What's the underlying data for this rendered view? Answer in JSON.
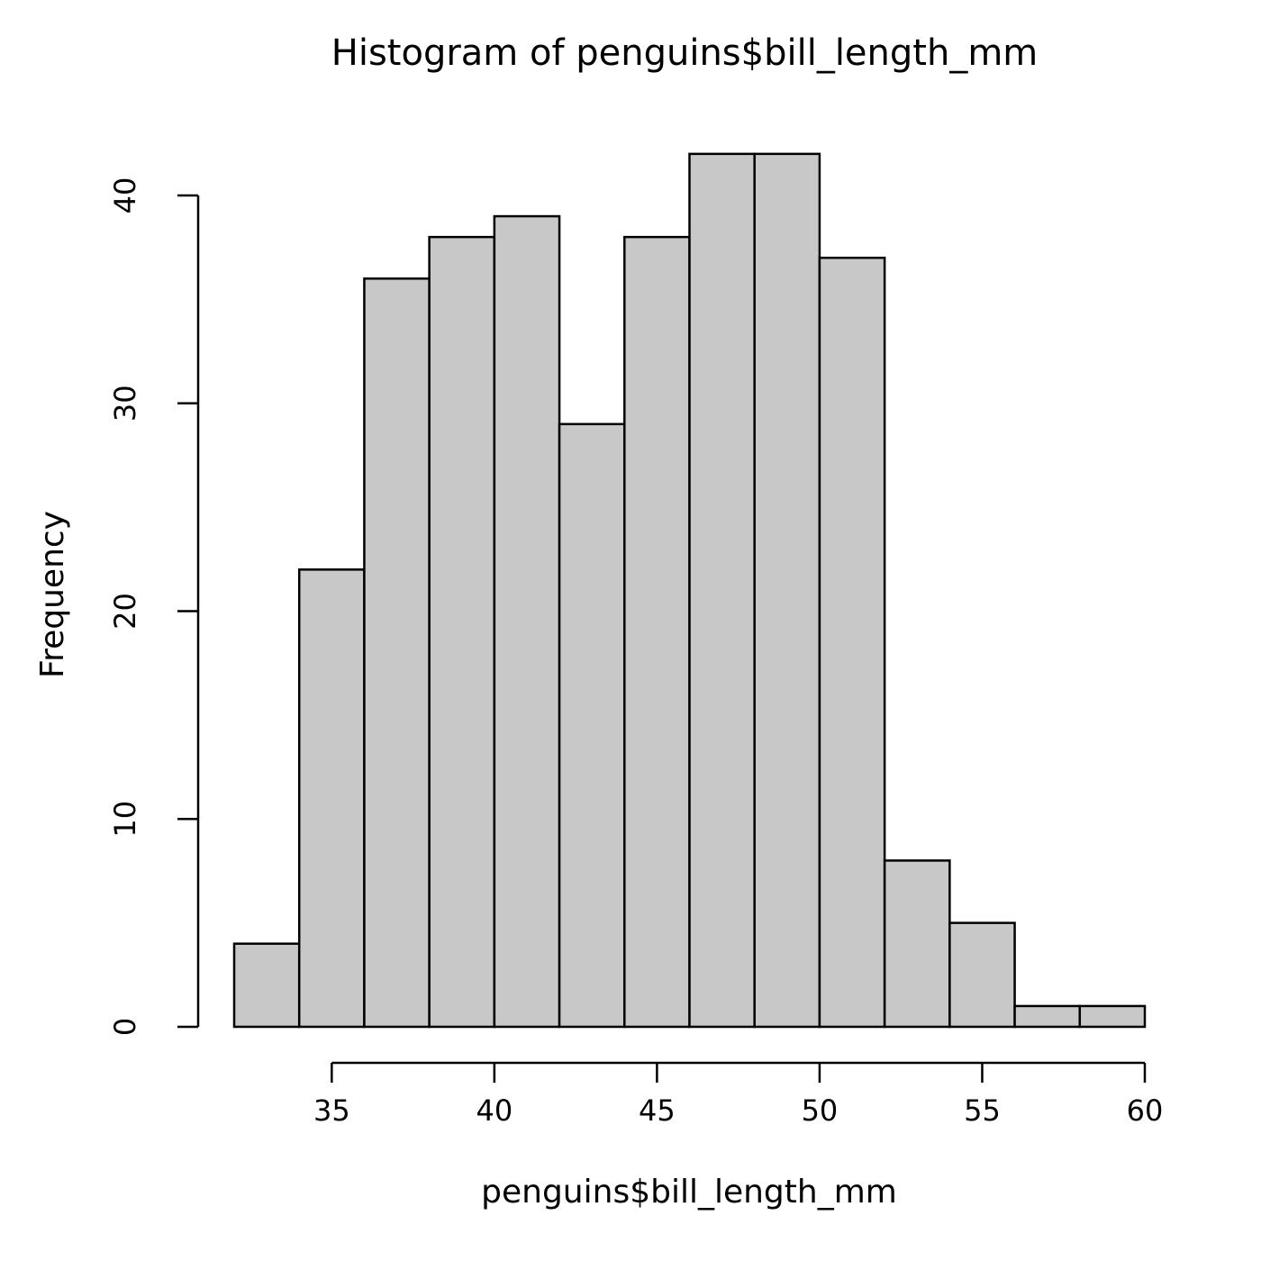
{
  "chart_data": {
    "type": "bar",
    "title": "Histogram of penguins$bill_length_mm",
    "xlabel": "penguins$bill_length_mm",
    "ylabel": "Frequency",
    "breaks": [
      32,
      34,
      36,
      38,
      40,
      42,
      44,
      46,
      48,
      50,
      52,
      54,
      56,
      58,
      60
    ],
    "values": [
      4,
      22,
      36,
      38,
      39,
      29,
      38,
      42,
      42,
      37,
      8,
      5,
      1,
      1
    ],
    "xlim": [
      32,
      60
    ],
    "ylim": [
      0,
      40
    ],
    "xticks": [
      "35",
      "40",
      "45",
      "50",
      "55",
      "60"
    ],
    "yticks": [
      "0",
      "10",
      "20",
      "30",
      "40"
    ],
    "grid": false,
    "bar_color": "#c8c8c8",
    "edge_color": "#000000"
  }
}
